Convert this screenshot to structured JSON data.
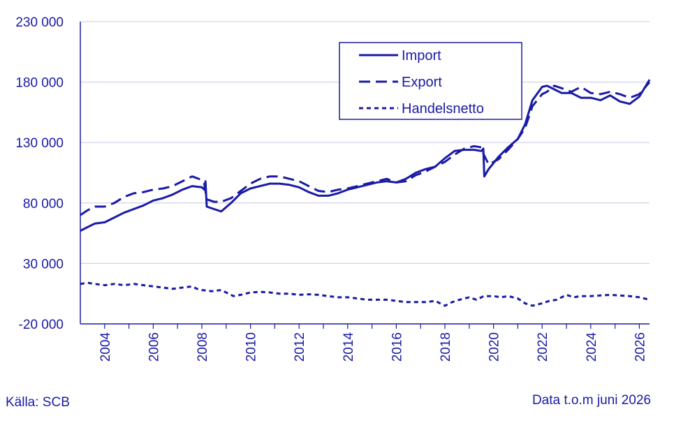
{
  "footer": {
    "source": "Källa: SCB",
    "note": "Data t.o.m juni 2026"
  },
  "colors": {
    "series": "#1a1aa6",
    "grid": "#c8c8e6",
    "text": "#1a1aa6"
  },
  "chart_data": {
    "type": "line",
    "title": "",
    "xlabel": "",
    "ylabel": "",
    "ylim": [
      -20000,
      230000
    ],
    "yticks": [
      -20000,
      30000,
      80000,
      130000,
      180000,
      230000
    ],
    "ytick_labels": [
      "-20 000",
      "30 000",
      "80 000",
      "130 000",
      "180 000",
      "230 000"
    ],
    "xlim": [
      2003.0,
      2026.42
    ],
    "xticks": [
      2004,
      2006,
      2008,
      2010,
      2012,
      2014,
      2016,
      2018,
      2020,
      2022,
      2024,
      2026
    ],
    "xtick_labels": [
      "2004",
      "2006",
      "2008",
      "2010",
      "2012",
      "2014",
      "2016",
      "2018",
      "2020",
      "2022",
      "2024",
      "2026"
    ],
    "grid": "horizontal",
    "legend": "top-right",
    "series": [
      {
        "name": "Import",
        "style": "solid",
        "x": [
          2003.0,
          2003.3,
          2003.6,
          2004.0,
          2004.4,
          2004.8,
          2005.2,
          2005.6,
          2006.0,
          2006.4,
          2006.8,
          2007.2,
          2007.6,
          2008.0,
          2008.1,
          2008.15,
          2008.2,
          2008.5,
          2008.8,
          2009.2,
          2009.6,
          2010.0,
          2010.4,
          2010.8,
          2011.2,
          2011.6,
          2012.0,
          2012.4,
          2012.8,
          2013.2,
          2013.6,
          2014.0,
          2014.4,
          2014.8,
          2015.2,
          2015.6,
          2016.0,
          2016.4,
          2016.8,
          2017.2,
          2017.6,
          2018.0,
          2018.4,
          2018.8,
          2019.2,
          2019.5,
          2019.58,
          2019.62,
          2019.8,
          2020.2,
          2020.6,
          2021.0,
          2021.3,
          2021.6,
          2022.0,
          2022.2,
          2022.5,
          2022.8,
          2023.2,
          2023.6,
          2024.0,
          2024.4,
          2024.8,
          2025.2,
          2025.6,
          2026.0,
          2026.42
        ],
        "values": [
          57000,
          60000,
          63000,
          64000,
          68000,
          72000,
          75000,
          78000,
          82000,
          84000,
          87000,
          91000,
          94000,
          93000,
          91000,
          98000,
          77000,
          75000,
          73000,
          80000,
          88000,
          92000,
          94000,
          96000,
          96000,
          95000,
          93000,
          89000,
          86000,
          86000,
          88000,
          91000,
          93000,
          95000,
          97000,
          98000,
          97000,
          100000,
          105000,
          108000,
          110000,
          117000,
          123000,
          124000,
          124000,
          123000,
          125000,
          102000,
          108000,
          118000,
          126000,
          133000,
          145000,
          165000,
          176000,
          177000,
          174000,
          171000,
          171000,
          167000,
          167000,
          165000,
          169000,
          164000,
          162000,
          168000,
          182000
        ]
      },
      {
        "name": "Export",
        "style": "dashed",
        "x": [
          2003.0,
          2003.3,
          2003.6,
          2004.0,
          2004.4,
          2004.8,
          2005.2,
          2005.6,
          2006.0,
          2006.4,
          2006.8,
          2007.2,
          2007.6,
          2008.0,
          2008.1,
          2008.2,
          2008.5,
          2008.8,
          2009.2,
          2009.6,
          2010.0,
          2010.4,
          2010.8,
          2011.2,
          2011.6,
          2012.0,
          2012.4,
          2012.8,
          2013.2,
          2013.6,
          2014.0,
          2014.4,
          2014.8,
          2015.2,
          2015.6,
          2016.0,
          2016.4,
          2016.8,
          2017.2,
          2017.6,
          2018.0,
          2018.4,
          2018.8,
          2019.2,
          2019.5,
          2019.6,
          2019.8,
          2020.2,
          2020.6,
          2021.0,
          2021.3,
          2021.6,
          2022.0,
          2022.2,
          2022.5,
          2022.8,
          2023.2,
          2023.6,
          2024.0,
          2024.4,
          2024.8,
          2025.2,
          2025.6,
          2026.0,
          2026.42
        ],
        "values": [
          70000,
          74000,
          77000,
          77000,
          80000,
          85000,
          88000,
          89000,
          91000,
          92000,
          94000,
          98000,
          102000,
          99000,
          96000,
          83000,
          81000,
          81000,
          84000,
          90000,
          96000,
          100000,
          102000,
          102000,
          100000,
          98000,
          94000,
          90000,
          89000,
          91000,
          92000,
          94000,
          96000,
          98000,
          100000,
          97000,
          98000,
          103000,
          106000,
          110000,
          114000,
          120000,
          125000,
          127000,
          126000,
          120000,
          112000,
          116000,
          124000,
          133000,
          142000,
          160000,
          170000,
          172000,
          177000,
          175000,
          172000,
          176000,
          171000,
          170000,
          172000,
          170000,
          167000,
          170000,
          180000
        ]
      },
      {
        "name": "Handelsnetto",
        "style": "dotted",
        "x": [
          2003.0,
          2003.3,
          2003.6,
          2004.0,
          2004.4,
          2004.8,
          2005.2,
          2005.6,
          2006.0,
          2006.4,
          2006.8,
          2007.2,
          2007.6,
          2007.8,
          2008.0,
          2008.4,
          2008.8,
          2009.0,
          2009.3,
          2009.6,
          2010.0,
          2010.4,
          2010.8,
          2011.2,
          2011.6,
          2012.0,
          2012.4,
          2012.8,
          2013.2,
          2013.6,
          2014.0,
          2014.4,
          2014.8,
          2015.2,
          2015.6,
          2016.0,
          2016.4,
          2016.8,
          2017.2,
          2017.6,
          2018.0,
          2018.3,
          2018.6,
          2019.0,
          2019.3,
          2019.6,
          2020.0,
          2020.3,
          2020.6,
          2021.0,
          2021.3,
          2021.6,
          2022.0,
          2022.3,
          2022.6,
          2023.0,
          2023.3,
          2023.6,
          2024.0,
          2024.4,
          2024.8,
          2025.2,
          2025.6,
          2026.0,
          2026.42
        ],
        "values": [
          13000,
          14000,
          13000,
          12000,
          13000,
          12000,
          13000,
          12000,
          11000,
          10000,
          9000,
          10000,
          11000,
          9000,
          8000,
          7000,
          8000,
          6000,
          3000,
          4000,
          6000,
          6500,
          6000,
          5000,
          5000,
          4000,
          4500,
          4000,
          3000,
          2000,
          2000,
          1000,
          0,
          0,
          0,
          -1000,
          -2000,
          -2000,
          -2000,
          -1000,
          -5000,
          -2000,
          0,
          2000,
          0,
          3000,
          3000,
          2000,
          3000,
          1000,
          -3000,
          -5000,
          -3000,
          -1000,
          0,
          4000,
          2000,
          3000,
          3000,
          3500,
          4000,
          3500,
          3000,
          2000,
          0
        ]
      }
    ]
  }
}
